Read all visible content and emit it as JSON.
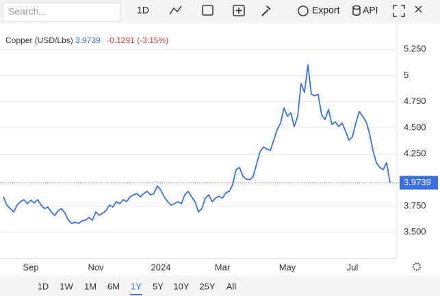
{
  "toolbar": {
    "search_placeholder": "Search...",
    "interval": "1D",
    "export": "Export",
    "api": "API"
  },
  "chart_data": {
    "type": "line",
    "title": "Copper (USD/Lbs)",
    "change": "-0.1291 (-3.15%)",
    "color": "#3a6fe0",
    "grid": true,
    "categories": [
      null,
      null,
      null,
      null,
      null,
      null,
      null,
      null,
      "Sep",
      null,
      null,
      null,
      null,
      null,
      null,
      null,
      null,
      null,
      null,
      null,
      null,
      null,
      null,
      null,
      null,
      null,
      null,
      "Nov",
      null,
      null,
      null,
      null,
      null,
      null,
      null,
      null,
      null,
      null,
      null,
      null,
      null,
      null,
      null,
      null,
      null,
      null,
      "2024",
      null,
      null,
      null,
      null,
      null,
      null,
      null,
      null,
      null,
      null,
      null,
      null,
      null,
      null,
      null,
      null,
      null,
      "Mar",
      null,
      null,
      null,
      null,
      null,
      null,
      null,
      null,
      null,
      null,
      null,
      null,
      null,
      null,
      null,
      null,
      null,
      null,
      "May",
      null,
      null,
      null,
      null,
      null,
      null,
      null,
      null,
      null,
      null,
      null,
      null,
      null,
      null,
      null,
      null,
      null,
      null,
      "Jul",
      null,
      null,
      null,
      null,
      null,
      null,
      null,
      null,
      null,
      null,
      null
    ],
    "values": [
      3.839,
      3.76,
      3.727,
      3.695,
      3.76,
      3.793,
      3.812,
      3.773,
      3.806,
      3.78,
      3.812,
      3.76,
      3.727,
      3.741,
      3.695,
      3.662,
      3.708,
      3.727,
      3.682,
      3.616,
      3.584,
      3.597,
      3.584,
      3.61,
      3.616,
      3.642,
      3.616,
      3.695,
      3.662,
      3.682,
      3.708,
      3.76,
      3.741,
      3.793,
      3.773,
      3.812,
      3.793,
      3.839,
      3.858,
      3.871,
      3.839,
      3.871,
      3.891,
      3.858,
      3.871,
      3.943,
      3.904,
      3.839,
      3.793,
      3.76,
      3.773,
      3.793,
      3.773,
      3.858,
      3.891,
      3.839,
      3.793,
      3.695,
      3.727,
      3.826,
      3.858,
      3.793,
      3.826,
      3.845,
      3.826,
      3.878,
      3.891,
      3.956,
      4.1,
      4.12,
      4.035,
      4.009,
      4.002,
      4.035,
      4.153,
      4.27,
      4.316,
      4.296,
      4.283,
      4.381,
      4.48,
      4.545,
      4.689,
      4.61,
      4.643,
      4.512,
      4.61,
      4.924,
      4.839,
      5.101,
      4.82,
      4.807,
      4.82,
      4.623,
      4.578,
      4.676,
      4.532,
      4.558,
      4.512,
      4.545,
      4.466,
      4.381,
      4.414,
      4.545,
      4.656,
      4.61,
      4.558,
      4.447,
      4.283,
      4.166,
      4.12,
      4.1,
      4.166,
      3.9739
    ],
    "ylim": [
      3.25,
      5.5
    ],
    "yticks": [
      {
        "value": 3.5,
        "label": "3.500"
      },
      {
        "value": 3.75,
        "label": "3.750"
      },
      {
        "value": 4.25,
        "label": "4.250"
      },
      {
        "value": 4.5,
        "label": "4.500"
      },
      {
        "value": 4.75,
        "label": "4.750"
      },
      5,
      {
        "value": 5.25,
        "label": "5.250"
      }
    ]
  },
  "range_buttons": [
    "1D",
    "1W",
    "1M",
    "6M",
    "1Y",
    "5Y",
    "10Y",
    "25Y",
    "All"
  ],
  "active_range": 4
}
